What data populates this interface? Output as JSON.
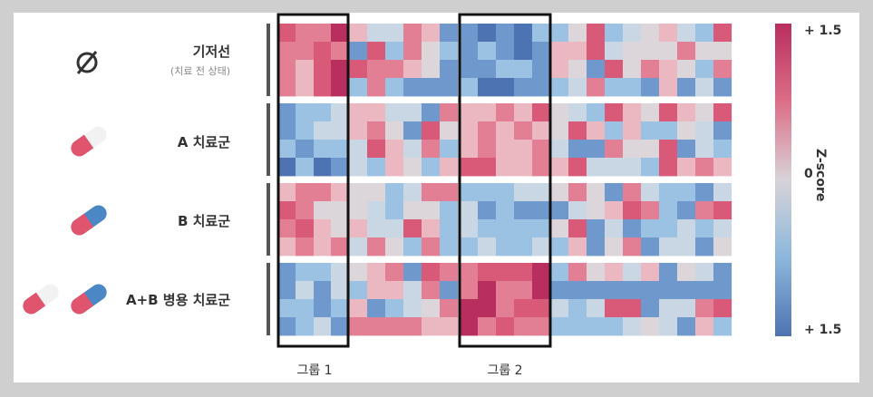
{
  "rows": [
    {
      "label": "기저선",
      "sublabel": "(치료 전 상태)",
      "icon": "empty-set-icon"
    },
    {
      "label": "A 치료군",
      "icon": "red-white-pill-icon"
    },
    {
      "label": "B 치료군",
      "icon": "blue-red-pill-icon"
    },
    {
      "label": "A+B 병용 치료군",
      "icon": "combo-pills-icon"
    }
  ],
  "groups": [
    "그룹 1",
    "그룹 2"
  ],
  "colorbar": {
    "top_label": "+ 1.5",
    "mid_label": "0",
    "bottom_label": "+ 1.5",
    "title": "Z-score"
  },
  "colors": {
    "high": "#b82e5e",
    "mid": "#d8d3d8",
    "low": "#4e73b2",
    "pill_red": "#e0546e",
    "pill_blue": "#4b86c5"
  }
}
